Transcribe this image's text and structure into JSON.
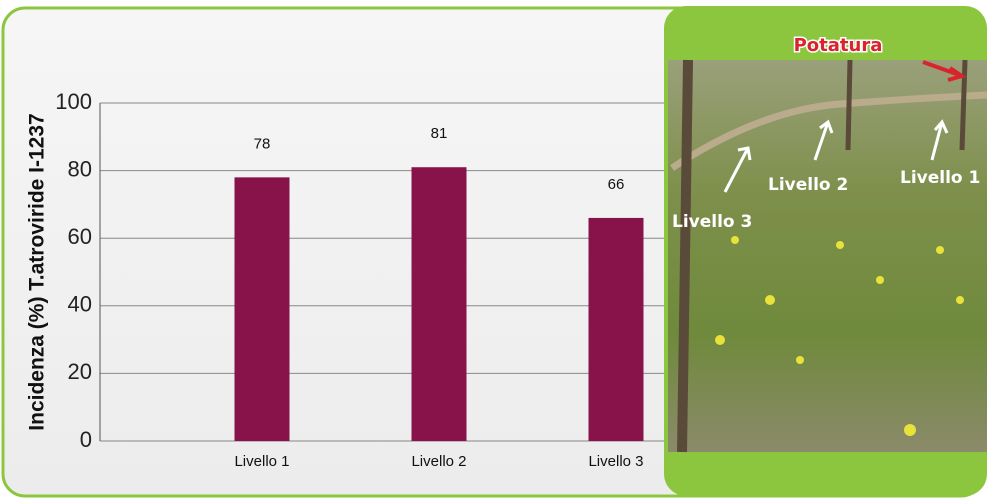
{
  "chart_data": {
    "type": "bar",
    "y_label": "Incidenza (%) T.atroviride I-1237",
    "categories": [
      "Livello 1",
      "Livello 2",
      "Livello 3"
    ],
    "values": [
      78,
      81,
      66
    ],
    "color": "#87134a",
    "ylim": [
      0,
      100
    ],
    "yticks": [
      0,
      20,
      40,
      60,
      80,
      100
    ],
    "grid": true,
    "annotations": [
      "Potatura",
      "Livello 1",
      "Livello 2",
      "Livello 3"
    ]
  }
}
